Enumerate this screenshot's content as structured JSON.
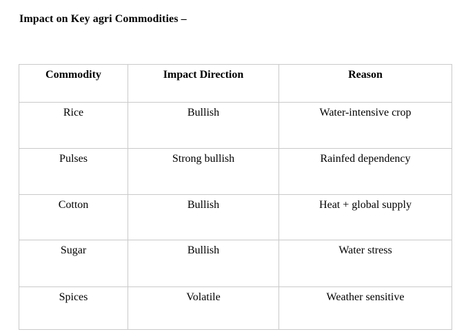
{
  "document": {
    "title": "Impact on Key agri Commodities –"
  },
  "table": {
    "headers": [
      "Commodity",
      "Impact Direction",
      "Reason"
    ],
    "rows": [
      [
        "Rice",
        "Bullish",
        "Water-intensive crop"
      ],
      [
        "Pulses",
        "Strong bullish",
        "Rainfed dependency"
      ],
      [
        "Cotton",
        "Bullish",
        "Heat + global supply"
      ],
      [
        "Sugar",
        "Bullish",
        "Water stress"
      ],
      [
        "Spices",
        "Volatile",
        "Weather sensitive"
      ]
    ]
  },
  "colors": {
    "background": "#ffffff",
    "text": "#000000",
    "table_border": "#c9c9c9"
  }
}
